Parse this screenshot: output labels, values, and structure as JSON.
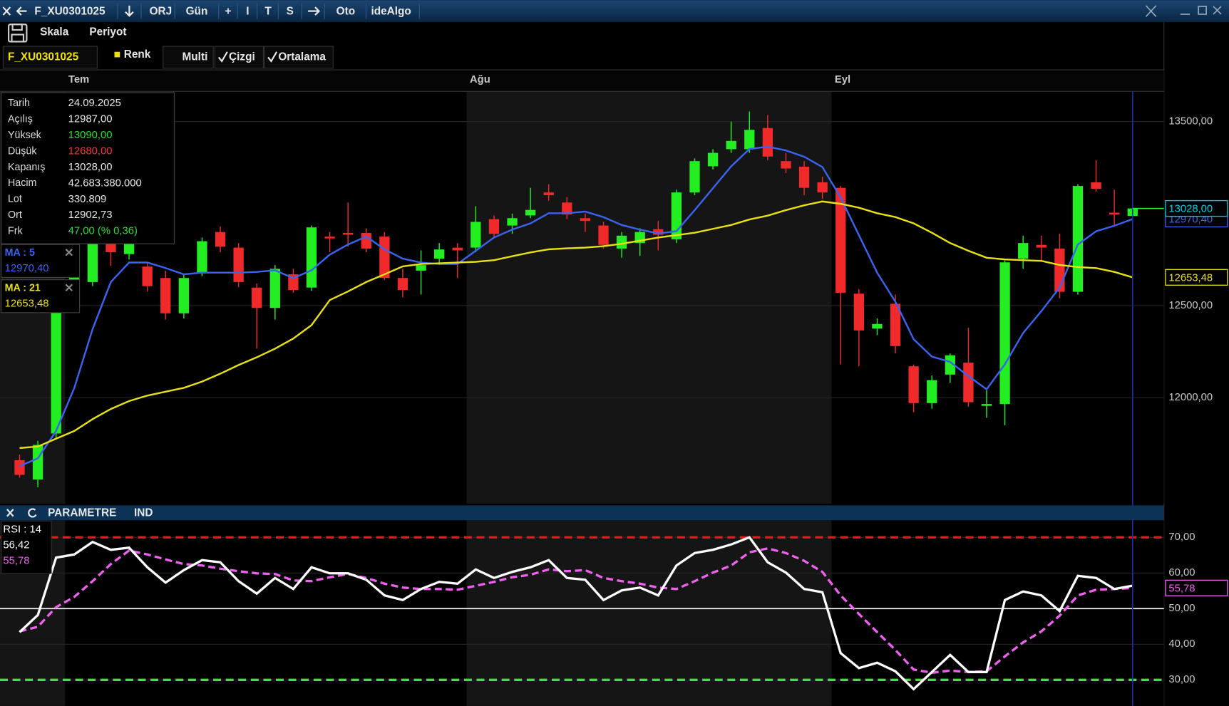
{
  "toolbar": {
    "symbol": "F_XU0301025",
    "buttons": [
      "ORJ",
      "Gün",
      "+",
      "I",
      "T",
      "S",
      "Oto",
      "ideAlgo"
    ]
  },
  "menu": [
    "Skala",
    "Periyot"
  ],
  "chart_toolbar": {
    "symbol": "F_XU0301025",
    "items": [
      "Renk",
      "Multi",
      "Çizgi",
      "Ortalama"
    ]
  },
  "info_panel": {
    "rows": [
      {
        "label": "Tarih",
        "value": "24.09.2025",
        "color": "#e6e6e6"
      },
      {
        "label": "Açılış",
        "value": "12987,00",
        "color": "#e6e6e6"
      },
      {
        "label": "Yüksek",
        "value": "13090,00",
        "color": "#22e022"
      },
      {
        "label": "Düşük",
        "value": "12680,00",
        "color": "#ff3030"
      },
      {
        "label": "Kapanış",
        "value": "13028,00",
        "color": "#e6e6e6"
      },
      {
        "label": "Hacim",
        "value": "42.683.380.000",
        "color": "#e6e6e6"
      },
      {
        "label": "Lot",
        "value": "330.809",
        "color": "#e6e6e6"
      },
      {
        "label": "Ort",
        "value": "12902,73",
        "color": "#e6e6e6"
      },
      {
        "label": "Frk",
        "value": "47,00 (% 0,36)",
        "color": "#22e022"
      }
    ]
  },
  "indicator_header": [
    "PARAMETRE",
    "IND"
  ],
  "chart_data": [
    {
      "type": "candlestick",
      "categories": [
        null,
        null,
        null,
        "Tem",
        null,
        null,
        null,
        null,
        null,
        null,
        null,
        null,
        null,
        null,
        null,
        null,
        null,
        null,
        null,
        null,
        null,
        null,
        null,
        null,
        null,
        "Ağu",
        null,
        null,
        null,
        null,
        null,
        null,
        null,
        null,
        null,
        null,
        null,
        null,
        null,
        null,
        null,
        null,
        null,
        null,
        null,
        "Eyl",
        null,
        null,
        null,
        null,
        null,
        null,
        null,
        null,
        null,
        null,
        null,
        null,
        null,
        null,
        null,
        null
      ],
      "open": [
        11660,
        11555,
        11805,
        12480,
        12628,
        12860,
        12780,
        12712,
        12650,
        12458,
        12680,
        12900,
        12815,
        12598,
        12487,
        12670,
        12598,
        12875,
        12895,
        12895,
        12875,
        12650,
        12690,
        12755,
        12815,
        12815,
        12970,
        12935,
        12990,
        13115,
        13060,
        12975,
        12935,
        12810,
        12840,
        12915,
        12860,
        13115,
        13257,
        13350,
        13350,
        13465,
        13285,
        13255,
        13170,
        13140,
        12565,
        12375,
        12510,
        12170,
        11970,
        12125,
        12190,
        11955,
        11965,
        12755,
        12830,
        12810,
        12575,
        13170,
        13005,
        12987
      ],
      "high": [
        11690,
        11765,
        12500,
        12730,
        12900,
        12880,
        12900,
        12734,
        12690,
        12670,
        12870,
        12930,
        12840,
        12620,
        12720,
        12700,
        12935,
        12900,
        13060,
        12920,
        12900,
        12700,
        12800,
        12840,
        12840,
        13040,
        12990,
        13000,
        13140,
        13160,
        13090,
        13000,
        12955,
        12900,
        12920,
        12960,
        13130,
        13300,
        13350,
        13500,
        13555,
        13535,
        13330,
        13285,
        13200,
        13150,
        12590,
        12430,
        12560,
        12180,
        12120,
        12240,
        12380,
        12040,
        12745,
        12880,
        12880,
        12890,
        13160,
        13290,
        13130,
        13090
      ],
      "low": [
        11565,
        11513,
        11777,
        12460,
        12606,
        12715,
        12750,
        12577,
        12424,
        12430,
        12660,
        12790,
        12600,
        12266,
        12424,
        12570,
        12580,
        12790,
        12820,
        12790,
        12640,
        12545,
        12560,
        12720,
        12650,
        12790,
        12870,
        12890,
        12975,
        13070,
        12970,
        12900,
        12810,
        12760,
        12770,
        12800,
        12840,
        13100,
        13240,
        13330,
        13330,
        13290,
        13220,
        13100,
        13080,
        12180,
        12170,
        12340,
        12240,
        11920,
        11940,
        12080,
        11950,
        11890,
        11850,
        12700,
        12740,
        12540,
        12560,
        13120,
        12930,
        12680
      ],
      "close": [
        11580,
        11743,
        12480,
        12700,
        12883,
        12790,
        12860,
        12606,
        12458,
        12650,
        12850,
        12820,
        12628,
        12487,
        12700,
        12585,
        12925,
        12865,
        12885,
        12810,
        12650,
        12585,
        12720,
        12805,
        12800,
        12955,
        12890,
        12975,
        13020,
        13100,
        12995,
        12960,
        12830,
        12880,
        12900,
        12885,
        13115,
        13285,
        13330,
        13395,
        13455,
        13310,
        13245,
        13140,
        13115,
        12570,
        12365,
        12400,
        12280,
        11970,
        12095,
        12230,
        11975,
        11965,
        12735,
        12840,
        12815,
        12575,
        13150,
        13135,
        12995,
        13028
      ],
      "up_color": "#22ee22",
      "down_color": "#f02a2a",
      "last_label": "13028,00",
      "last_color": "#00d0e0",
      "series": [
        {
          "name": "MA : 5",
          "color": "#3a64f0",
          "last_label": "12970,40",
          "axis_tag": true,
          "values": [
            11628,
            11670,
            11819,
            12053,
            12372,
            12628,
            12734,
            12734,
            12704,
            12670,
            12679,
            12679,
            12679,
            12683,
            12692,
            12649,
            12692,
            12777,
            12832,
            12875,
            12806,
            12755,
            12734,
            12726,
            12726,
            12798,
            12870,
            12913,
            12947,
            13002,
            13002,
            13011,
            12981,
            12938,
            12913,
            12892,
            12904,
            13019,
            13138,
            13257,
            13351,
            13364,
            13343,
            13309,
            13253,
            13087,
            12883,
            12679,
            12521,
            12317,
            12223,
            12194,
            12117,
            12045,
            12181,
            12351,
            12470,
            12598,
            12832,
            12904,
            12934,
            12970.4
          ]
        },
        {
          "name": "MA : 21",
          "color": "#e8e010",
          "last_label": "12653,48",
          "axis_tag": true,
          "values": [
            11726,
            11734,
            11777,
            11819,
            11883,
            11938,
            11981,
            12011,
            12032,
            12053,
            12087,
            12130,
            12177,
            12219,
            12266,
            12321,
            12394,
            12530,
            12577,
            12628,
            12670,
            12713,
            12726,
            12730,
            12734,
            12738,
            12747,
            12768,
            12789,
            12806,
            12811,
            12815,
            12823,
            12836,
            12853,
            12870,
            12883,
            12896,
            12917,
            12938,
            12968,
            12989,
            13019,
            13045,
            13066,
            13053,
            13032,
            13002,
            12981,
            12947,
            12896,
            12840,
            12798,
            12760,
            12751,
            12747,
            12743,
            12721,
            12709,
            12704,
            12683,
            12653.48
          ]
        }
      ],
      "ylim": [
        11423,
        13662
      ],
      "yticks": [
        {
          "value": 12000,
          "label": "12000,00"
        },
        {
          "value": 12500,
          "label": "12500,00"
        },
        {
          "value": 13500,
          "label": "13500,00"
        }
      ],
      "grid": true
    },
    {
      "type": "line",
      "series": [
        {
          "name": "RSI : 14",
          "color": "#ffffff",
          "last_label": "56,42",
          "axis_tag": false,
          "dash": false,
          "values": [
            43.4,
            48.2,
            64.3,
            65.2,
            68.7,
            66.5,
            67.1,
            61.6,
            57.3,
            60.8,
            63.6,
            63.0,
            57.7,
            54.2,
            58.6,
            55.5,
            61.6,
            59.9,
            59.9,
            58.1,
            53.7,
            52.4,
            55.5,
            57.5,
            57.0,
            61.0,
            58.6,
            60.3,
            61.6,
            63.6,
            58.6,
            58.1,
            52.4,
            55.1,
            55.9,
            53.7,
            62.1,
            65.6,
            66.5,
            68.0,
            70.0,
            63.0,
            60.1,
            55.5,
            54.6,
            37.5,
            33.3,
            34.8,
            32.4,
            27.4,
            32.2,
            37.0,
            32.2,
            32.2,
            52.4,
            54.8,
            53.7,
            49.3,
            59.2,
            58.6,
            55.5,
            56.42
          ]
        },
        {
          "color": "#f060f0",
          "last_label": "55,78",
          "axis_tag": true,
          "dash": true,
          "values": [
            43.6,
            44.9,
            50.4,
            53.3,
            57.7,
            62.5,
            66.3,
            65.2,
            63.8,
            62.5,
            62.1,
            61.2,
            60.5,
            59.9,
            59.7,
            57.9,
            57.7,
            58.8,
            59.7,
            58.6,
            57.0,
            55.9,
            55.5,
            55.5,
            55.3,
            56.4,
            57.5,
            58.8,
            59.5,
            61.0,
            60.5,
            60.8,
            58.6,
            57.7,
            57.0,
            55.9,
            55.5,
            57.7,
            60.1,
            62.1,
            65.8,
            66.9,
            65.6,
            63.4,
            60.3,
            53.7,
            48.5,
            43.4,
            38.4,
            32.9,
            32.0,
            32.6,
            32.2,
            32.4,
            36.6,
            40.5,
            43.6,
            48.0,
            53.7,
            55.3,
            55.5,
            55.78
          ]
        }
      ],
      "hlines": [
        {
          "value": 70,
          "color": "#e81a1a",
          "dash": true
        },
        {
          "value": 50,
          "color": "#ffffff",
          "dash": false
        },
        {
          "value": 30,
          "color": "#44dd44",
          "dash": true
        }
      ],
      "ylim": [
        22.7,
        74.8
      ],
      "yticks": [
        {
          "value": 30,
          "label": "30,00"
        },
        {
          "value": 40,
          "label": "40,00"
        },
        {
          "value": 50,
          "label": "50,00"
        },
        {
          "value": 60,
          "label": "60,00"
        },
        {
          "value": 70,
          "label": "70,00"
        }
      ],
      "grid": true
    }
  ]
}
